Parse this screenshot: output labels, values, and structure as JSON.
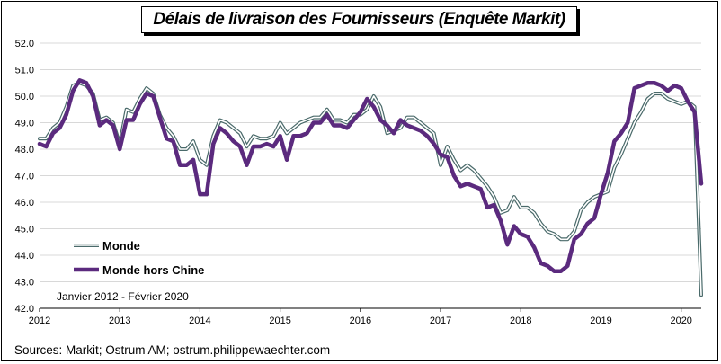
{
  "title": "Délais de livraison des Fournisseurs (Enquête Markit)",
  "source": "Sources: Markit; Ostrum AM; ostrum.philippewaechter.com",
  "date_range_note": "Janvier 2012 - Février 2020",
  "colors": {
    "monde_fill": "#ffffff",
    "monde_outline": "#4a6a6a",
    "hors_chine": "#5b2a7e",
    "grid": "#d8d8d8"
  },
  "chart_data": {
    "type": "line",
    "title": "Délais de livraison des Fournisseurs (Enquête Markit)",
    "xlabel": "",
    "ylabel": "",
    "ylim": [
      42.0,
      52.0
    ],
    "yticks": [
      "42.0",
      "43.0",
      "44.0",
      "45.0",
      "46.0",
      "47.0",
      "48.0",
      "49.0",
      "50.0",
      "51.0",
      "52.0"
    ],
    "xlim": [
      2012,
      2020.25
    ],
    "xticks": [
      "2012",
      "2013",
      "2014",
      "2015",
      "2016",
      "2017",
      "2018",
      "2019",
      "2020"
    ],
    "grid": "horizontal",
    "legend": "bottom-left",
    "series": [
      {
        "name": "Monde",
        "style": "outlined",
        "values": [
          48.4,
          48.4,
          48.8,
          49.0,
          49.6,
          50.4,
          50.5,
          50.4,
          50.1,
          49.1,
          49.2,
          49.0,
          48.2,
          49.5,
          49.4,
          49.9,
          50.3,
          50.1,
          49.3,
          48.8,
          48.5,
          48.0,
          48.0,
          48.3,
          47.6,
          47.4,
          48.5,
          49.1,
          49.0,
          48.8,
          48.6,
          48.1,
          48.5,
          48.4,
          48.4,
          48.5,
          49.0,
          48.6,
          48.8,
          49.0,
          49.1,
          49.2,
          49.2,
          49.5,
          49.1,
          49.1,
          49.0,
          49.3,
          49.3,
          49.5,
          50.0,
          49.6,
          48.6,
          48.7,
          48.8,
          49.2,
          49.2,
          49.0,
          48.8,
          48.6,
          47.4,
          48.1,
          47.6,
          47.2,
          47.4,
          47.2,
          46.9,
          46.6,
          46.2,
          45.6,
          45.7,
          46.2,
          45.8,
          45.8,
          45.6,
          45.2,
          44.9,
          44.8,
          44.6,
          44.6,
          44.9,
          45.7,
          46.0,
          46.2,
          46.3,
          46.4,
          47.3,
          47.8,
          48.4,
          49.0,
          49.4,
          49.9,
          50.1,
          50.1,
          49.9,
          49.8,
          49.7,
          49.8,
          49.6,
          42.5
        ]
      },
      {
        "name": "Monde hors Chine",
        "style": "thick",
        "values": [
          48.2,
          48.1,
          48.6,
          48.8,
          49.3,
          50.2,
          50.6,
          50.5,
          50.0,
          48.9,
          49.1,
          48.9,
          48.0,
          49.1,
          49.1,
          49.7,
          50.1,
          50.0,
          49.2,
          48.4,
          48.3,
          47.4,
          47.4,
          47.6,
          46.3,
          46.3,
          48.2,
          48.8,
          48.6,
          48.3,
          48.1,
          47.4,
          48.1,
          48.1,
          48.2,
          48.1,
          48.5,
          47.6,
          48.5,
          48.5,
          48.6,
          49.0,
          49.0,
          49.3,
          48.9,
          48.9,
          48.8,
          49.1,
          49.4,
          49.9,
          49.6,
          49.1,
          48.9,
          48.6,
          49.1,
          48.9,
          48.8,
          48.7,
          48.5,
          48.2,
          47.8,
          47.7,
          47.0,
          46.6,
          46.7,
          46.6,
          46.5,
          45.8,
          45.9,
          45.3,
          44.4,
          45.1,
          44.8,
          44.7,
          44.3,
          43.7,
          43.6,
          43.4,
          43.4,
          43.6,
          44.6,
          44.8,
          45.2,
          45.4,
          46.3,
          47.1,
          48.3,
          48.6,
          49.0,
          50.3,
          50.4,
          50.5,
          50.5,
          50.4,
          50.2,
          50.4,
          50.3,
          49.8,
          49.4,
          46.7
        ]
      }
    ]
  }
}
